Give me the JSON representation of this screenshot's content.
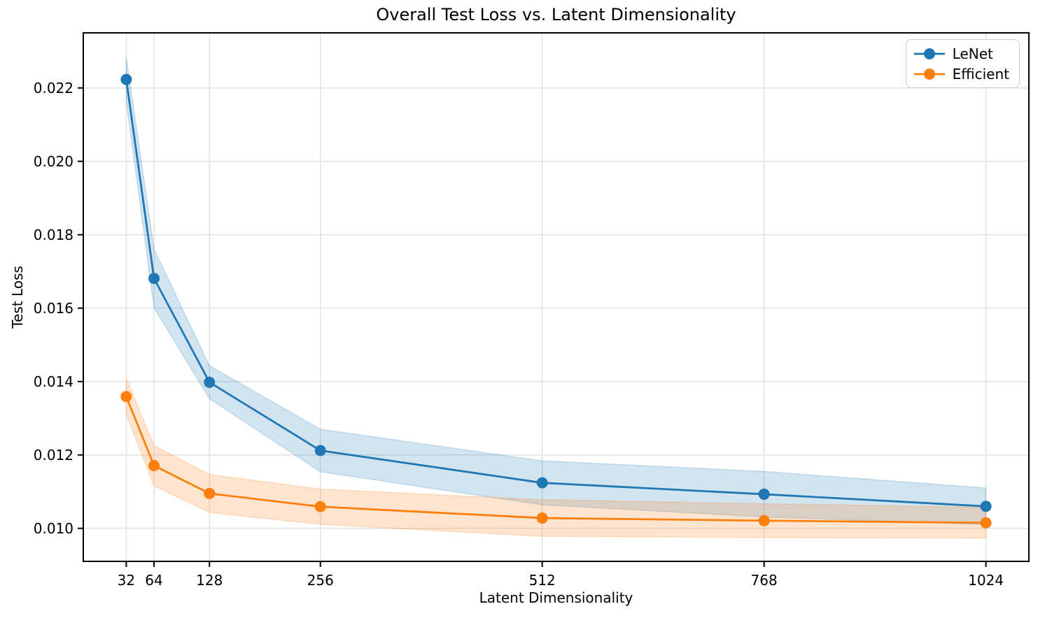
{
  "chart_data": {
    "type": "line",
    "title": "Overall Test Loss vs. Latent Dimensionality",
    "xlabel": "Latent Dimensionality",
    "ylabel": "Test Loss",
    "x": [
      32,
      64,
      128,
      256,
      512,
      768,
      1024
    ],
    "x_tick_labels": [
      "32",
      "64",
      "128",
      "256",
      "512",
      "768",
      "1024"
    ],
    "y_ticks": [
      0.01,
      0.012,
      0.014,
      0.016,
      0.018,
      0.02,
      0.022
    ],
    "y_tick_labels": [
      "0.010",
      "0.012",
      "0.014",
      "0.016",
      "0.018",
      "0.020",
      "0.022"
    ],
    "xlim": [
      -17.6,
      1073.6
    ],
    "ylim": [
      0.0091,
      0.0235
    ],
    "grid": true,
    "grid_color": "#e2e2e2",
    "spine_color": "#000000",
    "text_color": "#000000",
    "legend_position": "upper right",
    "band_alpha": 0.2,
    "series": [
      {
        "name": "LeNet",
        "color": "#1f77b4",
        "values": [
          0.02223,
          0.01681,
          0.01398,
          0.01212,
          0.01124,
          0.01093,
          0.0106
        ],
        "band_halfwidth": [
          0.0006,
          0.0008,
          0.00045,
          0.00058,
          0.0006,
          0.00062,
          0.0005
        ]
      },
      {
        "name": "Efficient",
        "color": "#ff7f0e",
        "values": [
          0.01359,
          0.01171,
          0.01095,
          0.01059,
          0.01028,
          0.01021,
          0.01015
        ],
        "band_halfwidth": [
          0.0005,
          0.00055,
          0.00052,
          0.00048,
          0.0005,
          0.00046,
          0.00042
        ]
      }
    ]
  }
}
